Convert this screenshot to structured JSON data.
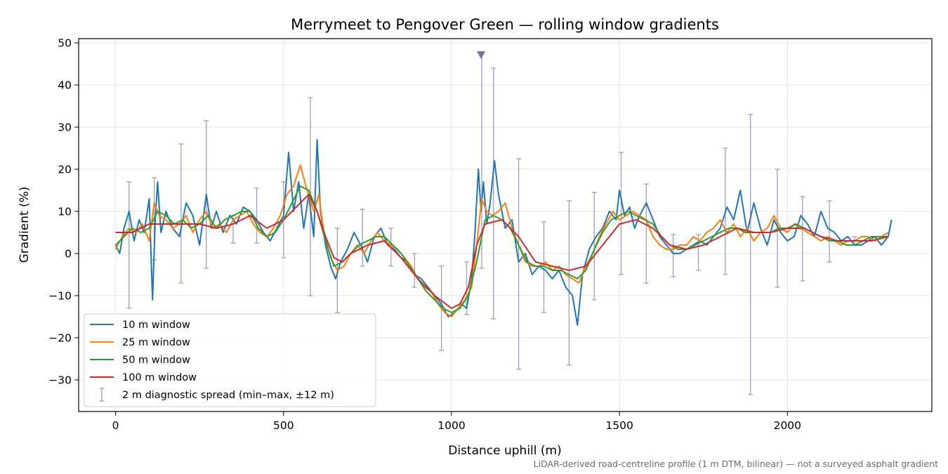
{
  "chart_data": {
    "type": "line",
    "title": "Merrymeet to Pengover Green — rolling window gradients",
    "xlabel": "Distance uphill (m)",
    "ylabel": "Gradient (%)",
    "xlim": [
      -110,
      2430
    ],
    "ylim": [
      -37.5,
      51
    ],
    "xticks": [
      0,
      500,
      1000,
      1500,
      2000
    ],
    "yticks": [
      -30,
      -20,
      -10,
      0,
      10,
      20,
      30,
      40,
      50
    ],
    "grid": true,
    "legend_position": "lower-left",
    "footnote": "LiDAR-derived road-centreline profile (1 m DTM, bilinear) — not a surveyed asphalt gradient",
    "series": [
      {
        "name": "10 m window",
        "color": "#1f77b4",
        "x": [
          0,
          12,
          25,
          40,
          55,
          70,
          85,
          100,
          110,
          118,
          125,
          135,
          150,
          170,
          190,
          210,
          230,
          250,
          270,
          285,
          300,
          320,
          340,
          360,
          380,
          400,
          420,
          440,
          460,
          480,
          500,
          515,
          530,
          545,
          560,
          575,
          590,
          600,
          610,
          625,
          640,
          655,
          670,
          690,
          710,
          730,
          750,
          770,
          790,
          810,
          830,
          850,
          870,
          890,
          910,
          930,
          950,
          970,
          990,
          1010,
          1030,
          1045,
          1060,
          1070,
          1080,
          1088,
          1095,
          1105,
          1115,
          1128,
          1140,
          1160,
          1180,
          1200,
          1220,
          1240,
          1260,
          1280,
          1300,
          1320,
          1340,
          1360,
          1375,
          1390,
          1410,
          1430,
          1450,
          1470,
          1490,
          1500,
          1515,
          1530,
          1545,
          1560,
          1580,
          1600,
          1620,
          1640,
          1660,
          1680,
          1700,
          1720,
          1740,
          1760,
          1780,
          1800,
          1820,
          1840,
          1860,
          1880,
          1900,
          1920,
          1940,
          1960,
          1980,
          2000,
          2020,
          2040,
          2060,
          2080,
          2100,
          2120,
          2140,
          2160,
          2180,
          2200,
          2220,
          2240,
          2260,
          2280,
          2300,
          2310
        ],
        "y": [
          2,
          0,
          6,
          10,
          3,
          8,
          5,
          13,
          -11,
          8,
          17,
          5,
          10,
          6,
          4,
          12,
          9,
          2,
          14,
          6,
          10,
          5,
          9,
          7,
          11,
          10,
          8,
          5,
          3,
          6,
          9,
          24,
          10,
          17,
          6,
          14,
          4,
          27,
          10,
          2,
          -3,
          -6,
          -2,
          1,
          5,
          2,
          -2,
          4,
          6,
          2,
          1,
          -1,
          -2,
          -5,
          -6,
          -8,
          -10,
          -12,
          -15,
          -14,
          -12,
          -13,
          -6,
          5,
          20,
          10,
          17,
          7,
          12,
          22,
          14,
          6,
          8,
          -2,
          0,
          -5,
          -3,
          -4,
          -6,
          -4,
          -8,
          -10,
          -17,
          -5,
          1,
          4,
          6,
          10,
          8,
          15,
          9,
          11,
          6,
          9,
          12,
          8,
          4,
          2,
          0,
          0,
          1,
          2,
          3,
          2,
          4,
          6,
          11,
          8,
          15,
          5,
          12,
          6,
          2,
          8,
          5,
          3,
          4,
          9,
          7,
          4,
          10,
          6,
          5,
          3,
          4,
          2,
          2,
          3,
          4,
          2,
          4,
          8
        ]
      },
      {
        "name": "25 m window",
        "color": "#ff7f0e",
        "x": [
          0,
          20,
          40,
          60,
          80,
          100,
          115,
          130,
          150,
          170,
          190,
          210,
          230,
          250,
          270,
          290,
          310,
          330,
          350,
          370,
          390,
          410,
          430,
          450,
          470,
          490,
          510,
          530,
          550,
          570,
          590,
          605,
          620,
          640,
          660,
          680,
          700,
          720,
          740,
          760,
          780,
          800,
          820,
          840,
          860,
          880,
          900,
          920,
          940,
          960,
          980,
          1000,
          1020,
          1040,
          1060,
          1075,
          1090,
          1105,
          1120,
          1140,
          1160,
          1180,
          1200,
          1220,
          1240,
          1260,
          1280,
          1300,
          1320,
          1340,
          1360,
          1380,
          1400,
          1420,
          1440,
          1460,
          1480,
          1500,
          1520,
          1540,
          1560,
          1580,
          1600,
          1620,
          1640,
          1660,
          1680,
          1700,
          1720,
          1740,
          1760,
          1780,
          1800,
          1820,
          1840,
          1860,
          1880,
          1900,
          1920,
          1940,
          1960,
          1980,
          2000,
          2020,
          2040,
          2060,
          2080,
          2100,
          2120,
          2140,
          2160,
          2180,
          2200,
          2220,
          2240,
          2260,
          2280,
          2300
        ],
        "y": [
          1,
          4,
          6,
          5,
          7,
          3,
          12,
          9,
          8,
          6,
          7,
          9,
          5,
          8,
          10,
          6,
          7,
          5,
          8,
          9,
          10,
          7,
          5,
          4,
          6,
          9,
          14,
          16,
          21,
          15,
          10,
          14,
          5,
          -1,
          -4,
          -3,
          0,
          2,
          0,
          3,
          5,
          3,
          2,
          1,
          -1,
          -3,
          -6,
          -8,
          -9,
          -12,
          -14,
          -15,
          -13,
          -11,
          -8,
          2,
          13,
          10,
          9,
          10,
          12,
          6,
          2,
          -2,
          -3,
          -3,
          -2,
          -4,
          -3,
          -5,
          -6,
          -7,
          -3,
          0,
          4,
          7,
          10,
          8,
          9,
          10,
          9,
          8,
          4,
          2,
          1,
          1,
          2,
          2,
          4,
          3,
          5,
          6,
          8,
          5,
          7,
          4,
          6,
          3,
          5,
          6,
          9,
          6,
          5,
          7,
          6,
          5,
          4,
          3,
          4,
          3,
          2,
          3,
          3,
          4,
          4,
          3,
          4,
          5
        ]
      },
      {
        "name": "50 m window",
        "color": "#2ca02c",
        "x": [
          0,
          25,
          50,
          75,
          100,
          125,
          150,
          175,
          200,
          225,
          250,
          275,
          300,
          325,
          350,
          375,
          400,
          425,
          450,
          475,
          500,
          525,
          550,
          575,
          600,
          625,
          650,
          675,
          700,
          725,
          750,
          775,
          800,
          825,
          850,
          875,
          900,
          925,
          950,
          975,
          1000,
          1025,
          1050,
          1075,
          1100,
          1125,
          1150,
          1175,
          1200,
          1225,
          1250,
          1275,
          1300,
          1325,
          1350,
          1375,
          1400,
          1425,
          1450,
          1475,
          1500,
          1525,
          1550,
          1575,
          1600,
          1625,
          1650,
          1675,
          1700,
          1725,
          1750,
          1775,
          1800,
          1825,
          1850,
          1875,
          1900,
          1925,
          1950,
          1975,
          2000,
          2025,
          2050,
          2075,
          2100,
          2125,
          2150,
          2175,
          2200,
          2225,
          2250,
          2275,
          2300
        ],
        "y": [
          2,
          4,
          6,
          5,
          6,
          10,
          9,
          7,
          8,
          6,
          7,
          9,
          6,
          8,
          9,
          10,
          10,
          6,
          4,
          5,
          8,
          12,
          16,
          15,
          10,
          3,
          -3,
          -2,
          0,
          2,
          3,
          4,
          4,
          2,
          0,
          -3,
          -6,
          -9,
          -11,
          -13,
          -14,
          -13,
          -10,
          -2,
          8,
          9,
          8,
          6,
          2,
          -2,
          -3,
          -3,
          -4,
          -4,
          -5,
          -6,
          -4,
          1,
          5,
          8,
          9,
          10,
          9,
          8,
          7,
          4,
          2,
          1,
          1,
          2,
          3,
          4,
          5,
          6,
          6,
          5,
          5,
          5,
          5,
          6,
          6,
          7,
          6,
          5,
          4,
          3,
          3,
          2,
          2,
          3,
          4,
          4,
          4
        ]
      },
      {
        "name": "100 m window",
        "color": "#d62728",
        "x": [
          0,
          50,
          100,
          150,
          200,
          250,
          300,
          350,
          400,
          450,
          500,
          550,
          575,
          600,
          625,
          650,
          675,
          700,
          750,
          800,
          850,
          900,
          950,
          1000,
          1025,
          1050,
          1075,
          1100,
          1150,
          1200,
          1250,
          1300,
          1350,
          1400,
          1450,
          1500,
          1550,
          1600,
          1650,
          1700,
          1750,
          1800,
          1850,
          1900,
          1950,
          2000,
          2050,
          2100,
          2150,
          2200,
          2250,
          2300
        ],
        "y": [
          5,
          5,
          7,
          7,
          7,
          7,
          6,
          7,
          9,
          6,
          8,
          12,
          14,
          10,
          4,
          -1,
          -2,
          0,
          2,
          3,
          -1,
          -6,
          -10,
          -13,
          -12,
          -8,
          2,
          7,
          8,
          4,
          -2,
          -3,
          -4,
          -3,
          2,
          7,
          8,
          6,
          2,
          1,
          2,
          4,
          6,
          5,
          5,
          6,
          6,
          4,
          3,
          3,
          3,
          4
        ]
      }
    ],
    "errorbars": {
      "name": "2 m diagnostic spread (min–max, ±12 m)",
      "color": "#a09cc4",
      "x": [
        40,
        115,
        195,
        270,
        350,
        420,
        500,
        580,
        660,
        735,
        820,
        890,
        970,
        1045,
        1090,
        1125,
        1200,
        1275,
        1350,
        1425,
        1505,
        1580,
        1660,
        1735,
        1815,
        1890,
        1970,
        2045,
        2125,
        2200
      ],
      "min": [
        -13,
        -1.5,
        -7,
        -3.5,
        2.5,
        2.5,
        -1,
        -10,
        -14,
        -3,
        -3,
        -8,
        -23,
        -14.5,
        -3.5,
        -15.5,
        -27.5,
        -14,
        -26.5,
        -11,
        -5,
        -7,
        -5.5,
        -4,
        -5,
        -33.5,
        -8,
        -6.5,
        -2,
        2
      ],
      "max": [
        17,
        18,
        26,
        31.5,
        9,
        15.5,
        17,
        37,
        6,
        10.5,
        6,
        0,
        -3,
        -2,
        47.5,
        44,
        22.5,
        7.5,
        12.5,
        14.5,
        24,
        16.5,
        4.5,
        4.5,
        25,
        33,
        20,
        13.5,
        12.5,
        4
      ],
      "marker_x": 1088,
      "marker_y": 47
    }
  }
}
